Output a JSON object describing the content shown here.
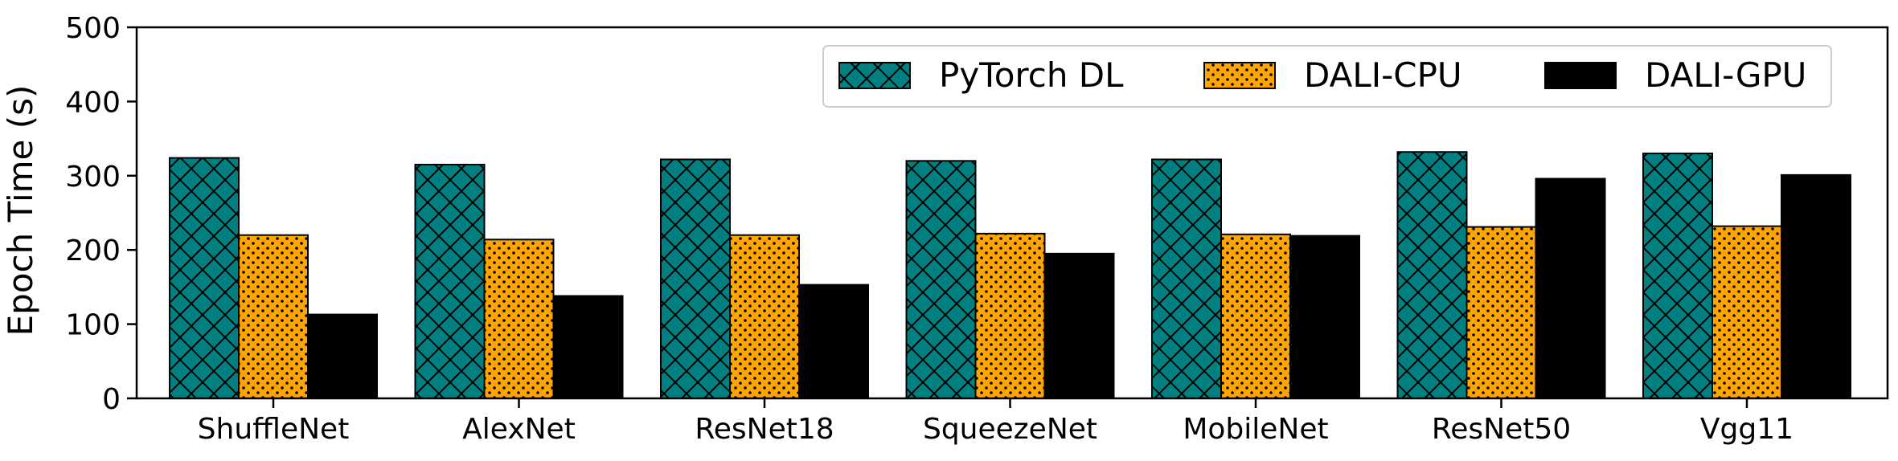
{
  "chart_data": {
    "type": "bar",
    "ylabel": "Epoch Time (s)",
    "xlabel": "",
    "ylim": [
      0,
      500
    ],
    "yticks": [
      0,
      100,
      200,
      300,
      400,
      500
    ],
    "categories": [
      "ShuffleNet",
      "AlexNet",
      "ResNet18",
      "SqueezeNet",
      "MobileNet",
      "ResNet50",
      "Vgg11"
    ],
    "series": [
      {
        "name": "PyTorch DL",
        "values": [
          324,
          315,
          322,
          320,
          322,
          332,
          330
        ],
        "color": "#008080",
        "pattern": "crosshatch"
      },
      {
        "name": "DALI-CPU",
        "values": [
          220,
          214,
          220,
          222,
          221,
          231,
          232
        ],
        "color": "#FFA500",
        "pattern": "dots"
      },
      {
        "name": "DALI-GPU",
        "values": [
          113,
          138,
          153,
          195,
          219,
          296,
          301
        ],
        "color": "#000000",
        "pattern": "solid"
      }
    ],
    "legend": {
      "position": "top-right",
      "columns": 3
    },
    "grid": false
  }
}
